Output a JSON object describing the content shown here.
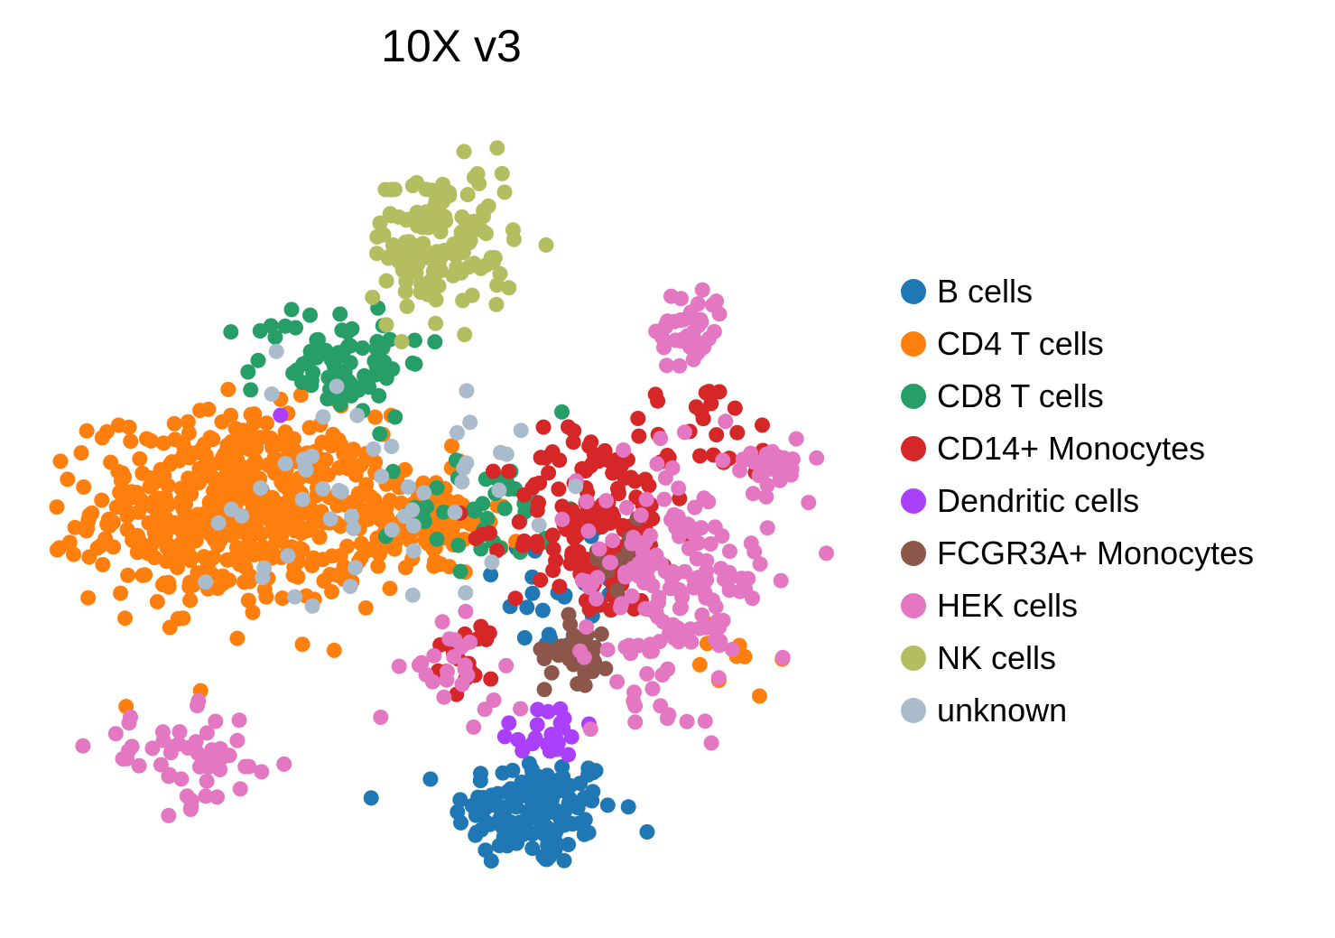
{
  "chart_data": {
    "type": "scatter",
    "title": "10X v3",
    "xlabel": "",
    "ylabel": "",
    "axes_visible": false,
    "grid": false,
    "legend_placement": "right",
    "x_range": [
      0,
      10
    ],
    "y_range": [
      0,
      10
    ],
    "series": [
      {
        "name": "B cells",
        "color": "#1f77b4",
        "clusters": [
          {
            "center": [
              6.05,
              1.05
            ],
            "spread": [
              0.85,
              0.6
            ],
            "n": 140
          },
          {
            "center": [
              6.4,
              3.9
            ],
            "spread": [
              0.7,
              0.9
            ],
            "n": 30
          }
        ]
      },
      {
        "name": "CD4 T cells",
        "color": "#ff7f0e",
        "clusters": [
          {
            "center": [
              2.3,
              4.9
            ],
            "spread": [
              1.5,
              1.0
            ],
            "n": 520
          },
          {
            "center": [
              4.6,
              4.7
            ],
            "spread": [
              0.9,
              0.55
            ],
            "n": 110
          },
          {
            "center": [
              8.5,
              3.0
            ],
            "spread": [
              0.5,
              0.5
            ],
            "n": 10
          }
        ]
      },
      {
        "name": "CD8 T cells",
        "color": "#279e68",
        "clusters": [
          {
            "center": [
              3.6,
              6.8
            ],
            "spread": [
              0.9,
              0.6
            ],
            "n": 80
          },
          {
            "center": [
              5.5,
              4.9
            ],
            "spread": [
              0.9,
              0.6
            ],
            "n": 40
          }
        ]
      },
      {
        "name": "CD14+ Monocytes",
        "color": "#d62728",
        "clusters": [
          {
            "center": [
              6.8,
              4.7
            ],
            "spread": [
              0.9,
              1.0
            ],
            "n": 150
          },
          {
            "center": [
              8.2,
              5.8
            ],
            "spread": [
              0.9,
              0.6
            ],
            "n": 30
          },
          {
            "center": [
              5.2,
              3.0
            ],
            "spread": [
              0.4,
              0.4
            ],
            "n": 20
          }
        ]
      },
      {
        "name": "Dendritic cells",
        "color": "#aa40fc",
        "clusters": [
          {
            "center": [
              6.2,
              2.1
            ],
            "spread": [
              0.55,
              0.35
            ],
            "n": 22
          },
          {
            "center": [
              2.9,
              6.1
            ],
            "spread": [
              0.05,
              0.05
            ],
            "n": 1
          }
        ]
      },
      {
        "name": "FCGR3A+ Monocytes",
        "color": "#8c564b",
        "clusters": [
          {
            "center": [
              6.6,
              3.1
            ],
            "spread": [
              0.35,
              0.35
            ],
            "n": 30
          },
          {
            "center": [
              7.0,
              4.3
            ],
            "spread": [
              0.4,
              0.4
            ],
            "n": 10
          }
        ]
      },
      {
        "name": "HEK cells",
        "color": "#e377c2",
        "clusters": [
          {
            "center": [
              7.8,
              4.0
            ],
            "spread": [
              1.0,
              1.3
            ],
            "n": 170
          },
          {
            "center": [
              1.7,
              1.7
            ],
            "spread": [
              1.0,
              0.5
            ],
            "n": 55
          },
          {
            "center": [
              8.0,
              7.2
            ],
            "spread": [
              0.35,
              0.45
            ],
            "n": 40
          },
          {
            "center": [
              9.0,
              5.5
            ],
            "spread": [
              0.4,
              0.3
            ],
            "n": 25
          },
          {
            "center": [
              5.0,
              2.8
            ],
            "spread": [
              0.5,
              0.5
            ],
            "n": 25
          }
        ]
      },
      {
        "name": "NK cells",
        "color": "#b5bd61",
        "clusters": [
          {
            "center": [
              4.9,
              8.3
            ],
            "spread": [
              0.75,
              0.8
            ],
            "n": 140
          }
        ]
      },
      {
        "name": "unknown",
        "color": "#aabbcc",
        "clusters": [
          {
            "center": [
              3.8,
              5.2
            ],
            "spread": [
              1.8,
              1.2
            ],
            "n": 55
          }
        ]
      }
    ]
  }
}
